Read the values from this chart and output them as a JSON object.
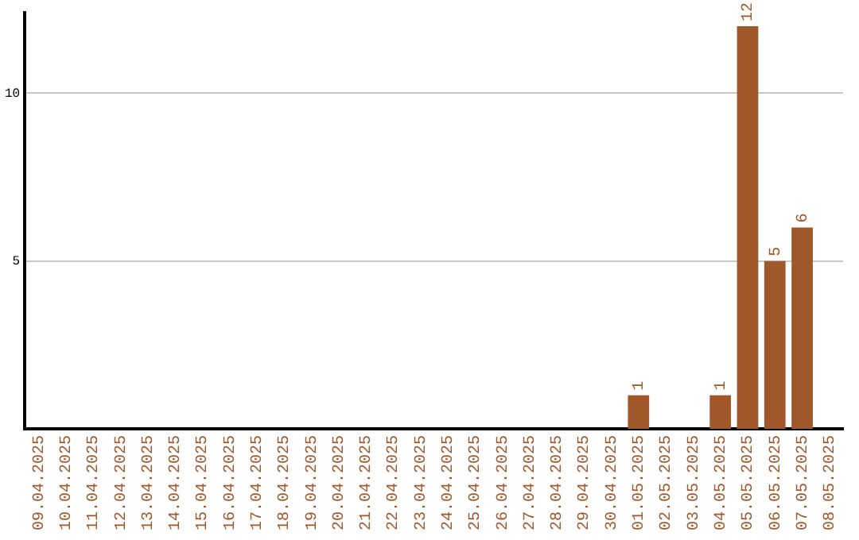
{
  "chart_data": {
    "type": "bar",
    "categories": [
      "09.04.2025",
      "10.04.2025",
      "11.04.2025",
      "12.04.2025",
      "13.04.2025",
      "14.04.2025",
      "15.04.2025",
      "16.04.2025",
      "17.04.2025",
      "18.04.2025",
      "19.04.2025",
      "20.04.2025",
      "21.04.2025",
      "22.04.2025",
      "23.04.2025",
      "24.04.2025",
      "25.04.2025",
      "26.04.2025",
      "27.04.2025",
      "28.04.2025",
      "29.04.2025",
      "30.04.2025",
      "01.05.2025",
      "02.05.2025",
      "03.05.2025",
      "04.05.2025",
      "05.05.2025",
      "06.05.2025",
      "07.05.2025",
      "08.05.2025"
    ],
    "values": [
      0,
      0,
      0,
      0,
      0,
      0,
      0,
      0,
      0,
      0,
      0,
      0,
      0,
      0,
      0,
      0,
      0,
      0,
      0,
      0,
      0,
      0,
      1,
      0,
      0,
      1,
      12,
      5,
      6,
      0
    ],
    "value_labels": [
      null,
      null,
      null,
      null,
      null,
      null,
      null,
      null,
      null,
      null,
      null,
      null,
      null,
      null,
      null,
      null,
      null,
      null,
      null,
      null,
      null,
      null,
      "1",
      null,
      null,
      "1",
      "12",
      "5",
      "6",
      null
    ],
    "color": "#a0572a",
    "ylim": [
      0,
      12.4
    ],
    "yticks": [
      5,
      10
    ],
    "grid": "y",
    "legend": false
  }
}
